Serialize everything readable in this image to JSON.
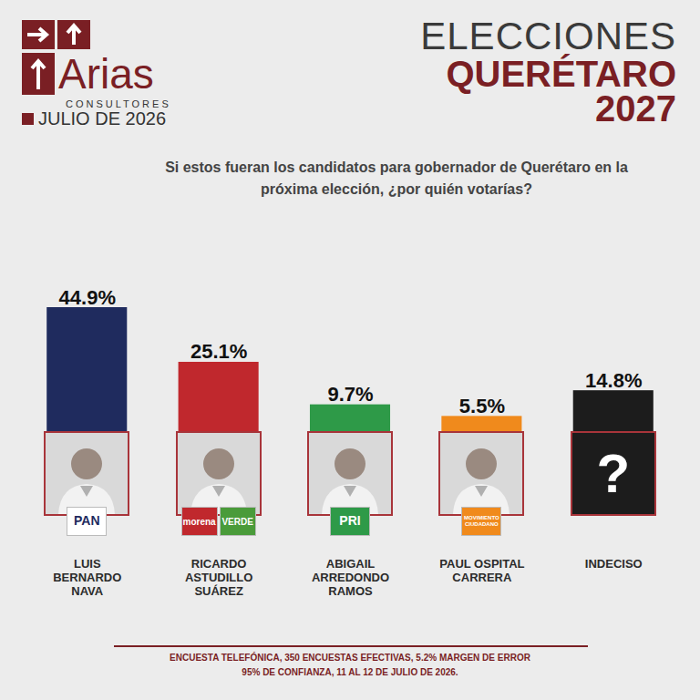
{
  "header": {
    "brand": "Arias",
    "brand_sub": "CONSULTORES",
    "date": "JULIO DE 2026",
    "title_lines": [
      "ELECCIONES",
      "QUERÉTARO",
      "2027"
    ]
  },
  "chart_data": {
    "type": "bar",
    "title": "Si estos fueran los candidatos para gobernador de Querétaro en la próxima elección, ¿por quién votarías?",
    "categories": [
      "LUIS\nBERNARDO\nNAVA",
      "RICARDO\nASTUDILLO\nSUÁREZ",
      "ABIGAIL\nARREDONDO\nRAMOS",
      "PAUL OSPITAL\nCARRERA",
      "INDECISO"
    ],
    "values": [
      44.9,
      25.1,
      9.7,
      5.5,
      14.8
    ],
    "value_labels": [
      "44.9%",
      "25.1%",
      "9.7%",
      "5.5%",
      "14.8%"
    ],
    "colors": [
      "#1f2b5e",
      "#c0282d",
      "#2e9a48",
      "#f08a1c",
      "#1c1c1c"
    ],
    "parties": [
      [
        "PAN"
      ],
      [
        "morena",
        "VERDE"
      ],
      [
        "PRI"
      ],
      [
        "MOVIMIENTO CIUDADANO"
      ],
      []
    ],
    "photo_labels": [
      null,
      null,
      null,
      null,
      "?"
    ],
    "ylim": [
      0,
      44.9
    ],
    "data_labels": true,
    "tick_labels": "x",
    "grid": false
  },
  "footer": [
    "ENCUESTA TELEFÓNICA, 350 ENCUESTAS EFECTIVAS, 5.2% MARGEN DE ERROR",
    "95% DE CONFIANZA, 11 AL 12 DE JULIO DE 2026."
  ]
}
